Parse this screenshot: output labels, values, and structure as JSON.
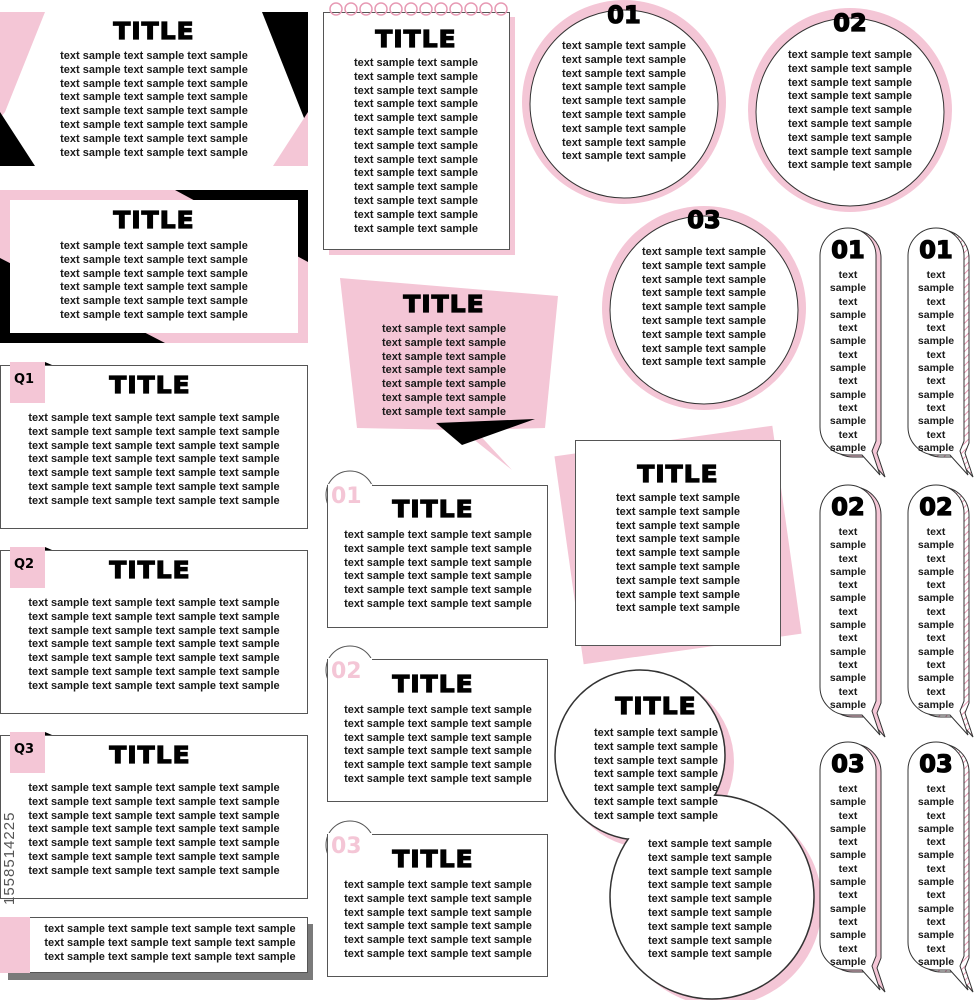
{
  "colors": {
    "pink": "#f4c6d6",
    "black": "#000000",
    "border": "#555555",
    "shadow": "#7a7a7a"
  },
  "watermark": "1558514225",
  "cards": [
    {
      "title": "TITLE",
      "lines": [
        "text sample text sample text sample",
        "text sample text sample text sample",
        "text sample text sample text sample",
        "text sample text sample text sample",
        "text sample text sample text sample",
        "text sample text sample text sample",
        "text sample text sample text sample",
        "text sample text sample text sample"
      ]
    },
    {
      "title": "TITLE",
      "lines": [
        "text sample text sample text sample",
        "text sample text sample text sample",
        "text sample text sample text sample",
        "text sample text sample text sample",
        "text sample text sample text sample",
        "text sample text sample text sample"
      ]
    },
    {
      "badge": "Q1",
      "title": "TITLE",
      "lines": [
        "text sample text sample text sample text sample",
        "text sample text sample text sample text sample",
        "text sample text sample text sample text sample",
        "text sample text sample text sample text sample",
        "text sample text sample text sample text sample",
        "text sample text sample text sample text sample",
        "text sample text sample text sample text sample"
      ]
    },
    {
      "badge": "Q2",
      "title": "TITLE",
      "lines": [
        "text sample text sample text sample text sample",
        "text sample text sample text sample text sample",
        "text sample text sample text sample text sample",
        "text sample text sample text sample text sample",
        "text sample text sample text sample text sample",
        "text sample text sample text sample text sample",
        "text sample text sample text sample text sample"
      ]
    },
    {
      "badge": "Q3",
      "title": "TITLE",
      "lines": [
        "text sample text sample text sample text sample",
        "text sample text sample text sample text sample",
        "text sample text sample text sample text sample",
        "text sample text sample text sample text sample",
        "text sample text sample text sample text sample",
        "text sample text sample text sample text sample",
        "text sample text sample text sample text sample"
      ]
    },
    {
      "lines": [
        "text sample text sample text sample text sample",
        "text sample text sample text sample text sample",
        "text sample text sample text sample text sample"
      ]
    },
    {
      "title": "TITLE",
      "lines": [
        "text sample text sample",
        "text sample text sample",
        "text sample text sample",
        "text sample text sample",
        "text sample text sample",
        "text sample text sample",
        "text sample text sample",
        "text sample text sample",
        "text sample text sample",
        "text sample text sample",
        "text sample text sample",
        "text sample text sample",
        "text sample text sample"
      ]
    },
    {
      "title": "TITLE",
      "lines": [
        "text sample text sample",
        "text sample text sample",
        "text sample text sample",
        "text sample text sample",
        "text sample text sample",
        "text sample text sample",
        "text sample text sample"
      ]
    },
    {
      "badge": "01",
      "title": "TITLE",
      "lines": [
        "text sample text sample text sample",
        "text sample text sample text sample",
        "text sample text sample text sample",
        "text sample text sample text sample",
        "text sample text sample text sample",
        "text sample text sample text sample"
      ]
    },
    {
      "badge": "02",
      "title": "TITLE",
      "lines": [
        "text sample text sample text sample",
        "text sample text sample text sample",
        "text sample text sample text sample",
        "text sample text sample text sample",
        "text sample text sample text sample",
        "text sample text sample text sample"
      ]
    },
    {
      "badge": "03",
      "title": "TITLE",
      "lines": [
        "text sample text sample text sample",
        "text sample text sample text sample",
        "text sample text sample text sample",
        "text sample text sample text sample",
        "text sample text sample text sample",
        "text sample text sample text sample"
      ]
    },
    {
      "number": "01",
      "lines": [
        "text sample text sample",
        "text sample text sample",
        "text sample text sample",
        "text sample text sample",
        "text sample text sample",
        "text sample text sample",
        "text sample text sample",
        "text sample text sample",
        "text sample text sample"
      ]
    },
    {
      "number": "02",
      "lines": [
        "text sample text sample",
        "text sample text sample",
        "text sample text sample",
        "text sample text sample",
        "text sample text sample",
        "text sample text sample",
        "text sample text sample",
        "text sample text sample",
        "text sample text sample"
      ]
    },
    {
      "number": "03",
      "lines": [
        "text sample text sample",
        "text sample text sample",
        "text sample text sample",
        "text sample text sample",
        "text sample text sample",
        "text sample text sample",
        "text sample text sample",
        "text sample text sample",
        "text sample text sample"
      ]
    },
    {
      "title": "TITLE",
      "lines": [
        "text sample text sample",
        "text sample text sample",
        "text sample text sample",
        "text sample text sample",
        "text sample text sample",
        "text sample text sample",
        "text sample text sample",
        "text sample text sample",
        "text sample text sample"
      ]
    },
    {
      "title": "TITLE",
      "lines": [
        "text sample text sample",
        "text sample text sample",
        "text sample text sample",
        "text sample text sample",
        "text sample text sample",
        "text sample text sample",
        "text sample text sample"
      ],
      "lines2": [
        "text sample text sample",
        "text sample text sample",
        "text sample text sample",
        "text sample text sample",
        "text sample text sample",
        "text sample text sample",
        "text sample text sample",
        "text sample text sample",
        "text sample text sample"
      ]
    }
  ],
  "vertical_bubbles": [
    {
      "number": "01",
      "style": "pink-shadow",
      "lines": [
        "text",
        "sample",
        "text",
        "sample",
        "text",
        "sample",
        "text",
        "sample",
        "text",
        "sample",
        "text",
        "sample",
        "text",
        "sample"
      ]
    },
    {
      "number": "01",
      "style": "hatched-shadow",
      "lines": [
        "text",
        "sample",
        "text",
        "sample",
        "text",
        "sample",
        "text",
        "sample",
        "text",
        "sample",
        "text",
        "sample",
        "text",
        "sample"
      ]
    },
    {
      "number": "02",
      "style": "pink-shadow",
      "lines": [
        "text",
        "sample",
        "text",
        "sample",
        "text",
        "sample",
        "text",
        "sample",
        "text",
        "sample",
        "text",
        "sample",
        "text",
        "sample"
      ]
    },
    {
      "number": "02",
      "style": "hatched-shadow",
      "lines": [
        "text",
        "sample",
        "text",
        "sample",
        "text",
        "sample",
        "text",
        "sample",
        "text",
        "sample",
        "text",
        "sample",
        "text",
        "sample"
      ]
    },
    {
      "number": "03",
      "style": "pink-shadow",
      "lines": [
        "text",
        "sample",
        "text",
        "sample",
        "text",
        "sample",
        "text",
        "sample",
        "text",
        "sample",
        "text",
        "sample",
        "text",
        "sample"
      ]
    },
    {
      "number": "03",
      "style": "hatched-shadow",
      "lines": [
        "text",
        "sample",
        "text",
        "sample",
        "text",
        "sample",
        "text",
        "sample",
        "text",
        "sample",
        "text",
        "sample",
        "text",
        "sample"
      ]
    }
  ]
}
